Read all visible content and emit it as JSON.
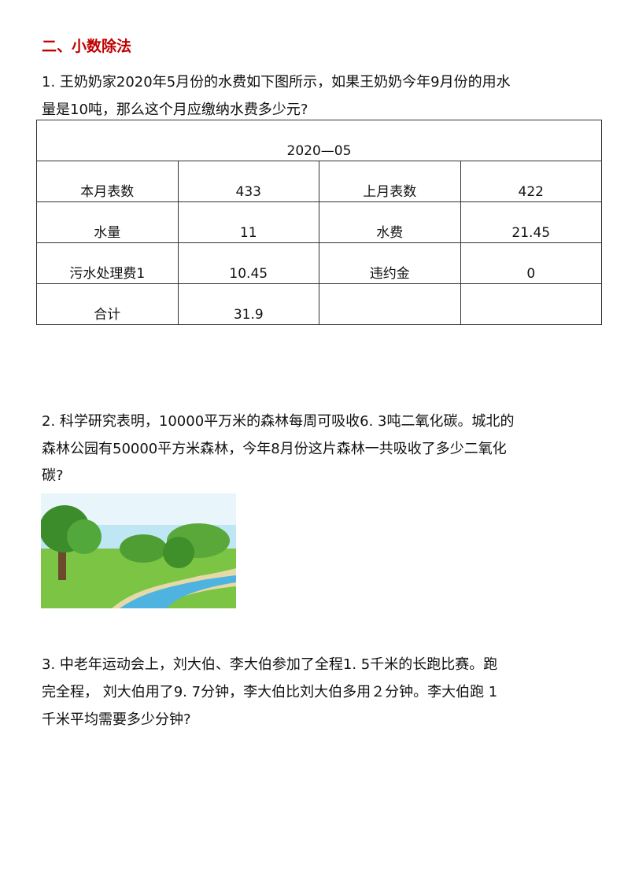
{
  "section_title": "二、小数除法",
  "q1": {
    "lines": [
      "1. 王奶奶家2020年5月份的水费如下图所示，如果王奶奶今年9月份的用水",
      "量是10吨，那么这个月应缴纳水费多少元?"
    ]
  },
  "bill": {
    "title": "2020—05",
    "rows": [
      [
        "本月表数",
        "433",
        "上月表数",
        "422"
      ],
      [
        "水量",
        "11",
        "水费",
        "21.45"
      ],
      [
        "污水处理费1",
        "10.45",
        "违约金",
        "0"
      ],
      [
        "合计",
        "31.9",
        "",
        ""
      ]
    ]
  },
  "q2": {
    "lines": [
      "2. 科学研究表明，10000平万米的森林每周可吸收6. 3吨二氧化碳。城北的",
      "森林公园有50000平方米森林，今年8月份这片森林一共吸收了多少二氧化",
      "碳?"
    ]
  },
  "q3": {
    "lines": [
      "3. 中老年运动会上，刘大伯、李大伯参加了全程1. 5千米的长跑比赛。跑",
      "完全程，  刘大伯用了9. 7分钟，李大伯比刘大伯多用２分钟。李大伯跑 1",
      "千米平均需要多少分钟?"
    ]
  }
}
